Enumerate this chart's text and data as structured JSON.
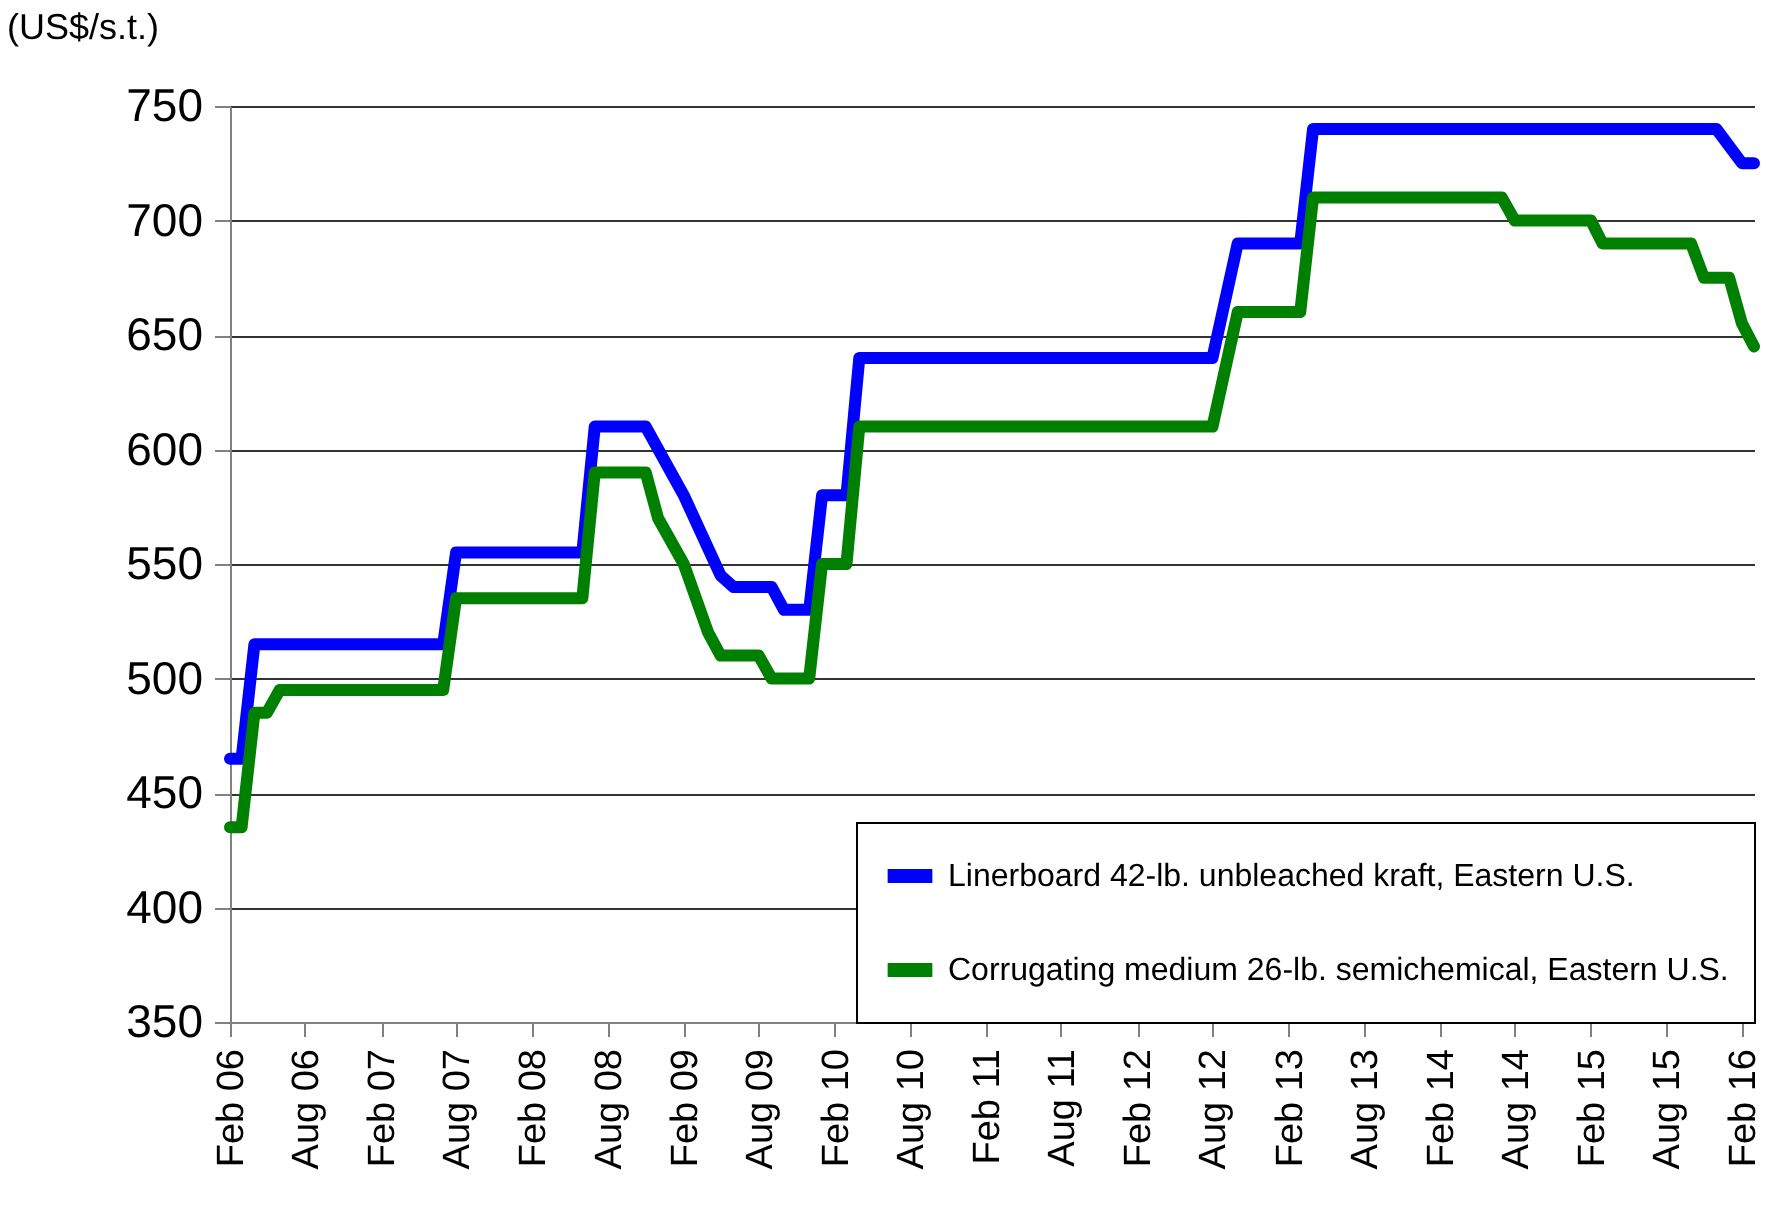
{
  "chart_data": {
    "type": "line",
    "ylabel": "(US$/s.t.)",
    "xlim": [
      "2006-02",
      "2016-03"
    ],
    "ylim": [
      350,
      750
    ],
    "yticks": [
      350,
      400,
      450,
      500,
      550,
      600,
      650,
      700,
      750
    ],
    "xticks": [
      {
        "value": "2006-02",
        "label": "Feb 06"
      },
      {
        "value": "2006-08",
        "label": "Aug 06"
      },
      {
        "value": "2007-02",
        "label": "Feb 07"
      },
      {
        "value": "2007-08",
        "label": "Aug 07"
      },
      {
        "value": "2008-02",
        "label": "Feb 08"
      },
      {
        "value": "2008-08",
        "label": "Aug 08"
      },
      {
        "value": "2009-02",
        "label": "Feb 09"
      },
      {
        "value": "2009-08",
        "label": "Aug 09"
      },
      {
        "value": "2010-02",
        "label": "Feb 10"
      },
      {
        "value": "2010-08",
        "label": "Aug 10"
      },
      {
        "value": "2011-02",
        "label": "Feb 11"
      },
      {
        "value": "2011-08",
        "label": "Aug 11"
      },
      {
        "value": "2012-02",
        "label": "Feb 12"
      },
      {
        "value": "2012-08",
        "label": "Aug 12"
      },
      {
        "value": "2013-02",
        "label": "Feb 13"
      },
      {
        "value": "2013-08",
        "label": "Aug 13"
      },
      {
        "value": "2014-02",
        "label": "Feb 14"
      },
      {
        "value": "2014-08",
        "label": "Aug 14"
      },
      {
        "value": "2015-02",
        "label": "Feb 15"
      },
      {
        "value": "2015-08",
        "label": "Aug 15"
      },
      {
        "value": "2016-02",
        "label": "Feb 16"
      }
    ],
    "grid": "y",
    "legend": "bottom right",
    "line_style": "solid",
    "marker": "none",
    "series": [
      {
        "name": "Linerboard 42-lb. unbleached kraft, Eastern U.S.",
        "color": "#0000ff",
        "x": [
          "2006-02",
          "2006-03",
          "2006-04",
          "2007-07",
          "2007-08",
          "2008-06",
          "2008-07",
          "2008-11",
          "2009-02",
          "2009-05",
          "2009-06",
          "2009-09",
          "2009-10",
          "2009-12",
          "2010-01",
          "2010-03",
          "2010-04",
          "2012-08",
          "2012-10",
          "2013-03",
          "2013-04",
          "2015-12",
          "2016-02",
          "2016-03"
        ],
        "values": [
          465,
          465,
          515,
          515,
          555,
          555,
          610,
          610,
          580,
          545,
          540,
          540,
          530,
          530,
          580,
          580,
          640,
          640,
          690,
          690,
          740,
          740,
          725,
          725
        ]
      },
      {
        "name": "Corrugating medium 26-lb. semichemical, Eastern U.S.",
        "color": "#008000",
        "x": [
          "2006-02",
          "2006-03",
          "2006-04",
          "2006-05",
          "2006-06",
          "2007-07",
          "2007-08",
          "2008-06",
          "2008-07",
          "2008-11",
          "2008-12",
          "2009-02",
          "2009-04",
          "2009-05",
          "2009-08",
          "2009-09",
          "2009-12",
          "2010-01",
          "2010-03",
          "2010-04",
          "2012-08",
          "2012-10",
          "2013-03",
          "2013-04",
          "2014-07",
          "2014-08",
          "2015-02",
          "2015-03",
          "2015-10",
          "2015-11",
          "2016-01",
          "2016-02",
          "2016-03"
        ],
        "values": [
          435,
          435,
          485,
          485,
          495,
          495,
          535,
          535,
          590,
          590,
          570,
          550,
          520,
          510,
          510,
          500,
          500,
          550,
          550,
          610,
          610,
          660,
          660,
          710,
          710,
          700,
          700,
          690,
          690,
          675,
          675,
          655,
          645
        ]
      }
    ]
  }
}
